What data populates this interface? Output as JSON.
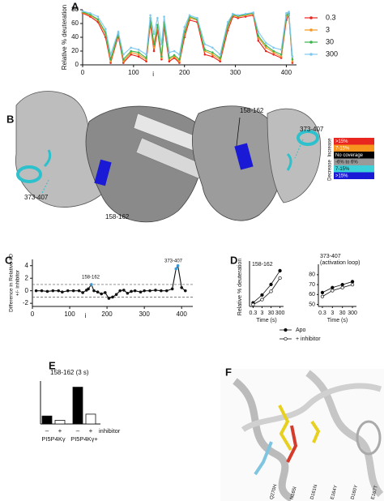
{
  "panel_labels": [
    "A",
    "B",
    "C",
    "D",
    "E",
    "F"
  ],
  "chart_data": [
    {
      "type": "line",
      "y_label": "Relative % deuteration",
      "x_label": "i",
      "x": [
        0,
        15,
        30,
        45,
        55,
        70,
        80,
        95,
        110,
        125,
        133,
        140,
        147,
        155,
        160,
        170,
        180,
        190,
        200,
        210,
        225,
        240,
        255,
        270,
        285,
        295,
        305,
        320,
        335,
        345,
        360,
        375,
        390,
        400,
        405,
        412
      ],
      "xlim": [
        0,
        420
      ],
      "xticks": [
        0,
        100,
        200,
        300,
        400
      ],
      "ylim": [
        0,
        80
      ],
      "yticks": [
        0,
        20,
        40,
        60,
        80
      ],
      "legend": "right",
      "series": [
        {
          "name": "0.3",
          "color": "#e8251f",
          "values": [
            75,
            70,
            62,
            40,
            3,
            42,
            3,
            15,
            12,
            5,
            60,
            20,
            50,
            8,
            55,
            5,
            10,
            3,
            40,
            65,
            62,
            15,
            12,
            5,
            50,
            70,
            68,
            70,
            72,
            35,
            20,
            15,
            10,
            65,
            72,
            3
          ]
        },
        {
          "name": "3",
          "color": "#f7941d",
          "values": [
            76,
            72,
            65,
            45,
            5,
            45,
            5,
            18,
            15,
            8,
            65,
            25,
            55,
            10,
            60,
            8,
            12,
            5,
            45,
            68,
            65,
            20,
            15,
            8,
            55,
            72,
            70,
            72,
            74,
            40,
            25,
            18,
            12,
            70,
            74,
            5
          ]
        },
        {
          "name": "30",
          "color": "#3cb44b",
          "values": [
            77,
            73,
            66,
            47,
            8,
            46,
            8,
            20,
            18,
            10,
            68,
            30,
            58,
            12,
            62,
            10,
            14,
            8,
            48,
            70,
            66,
            22,
            18,
            10,
            58,
            73,
            71,
            73,
            75,
            42,
            28,
            20,
            15,
            72,
            75,
            8
          ]
        },
        {
          "name": "300",
          "color": "#7ec8f0",
          "values": [
            78,
            75,
            70,
            52,
            15,
            48,
            15,
            25,
            22,
            15,
            72,
            45,
            68,
            30,
            70,
            18,
            20,
            15,
            55,
            72,
            68,
            30,
            25,
            15,
            62,
            74,
            72,
            74,
            76,
            48,
            32,
            25,
            22,
            75,
            77,
            12
          ]
        }
      ]
    },
    {
      "type": "line",
      "y_label": "Difference in Relative #D",
      "y_label_2": "+/- inhibitor",
      "x_label": "i",
      "annotations": [
        "158-162",
        "373-407"
      ],
      "x": [
        10,
        25,
        40,
        55,
        70,
        80,
        95,
        110,
        125,
        135,
        145,
        150,
        158,
        165,
        175,
        185,
        195,
        205,
        215,
        225,
        235,
        245,
        255,
        265,
        275,
        290,
        300,
        315,
        330,
        345,
        360,
        375,
        385,
        390,
        400,
        410
      ],
      "xlim": [
        0,
        430
      ],
      "xticks": [
        0,
        100,
        200,
        300,
        400
      ],
      "ylim": [
        -2.5,
        5
      ],
      "yticks": [
        -2,
        0,
        2,
        4
      ],
      "threshold_lines": [
        -1,
        1
      ],
      "series": [
        {
          "color": "#111111",
          "values": [
            0,
            0,
            -0.1,
            0,
            0,
            -0.2,
            0,
            0,
            0,
            -0.3,
            0.1,
            0.3,
            1,
            0,
            -0.2,
            -0.5,
            -0.3,
            -1.2,
            -1,
            -0.6,
            0,
            0.1,
            -0.4,
            -0.1,
            0,
            -0.2,
            0,
            0,
            0.1,
            0,
            0,
            0.3,
            3.5,
            4,
            0.5,
            0
          ],
          "point_colors": [
            "#111",
            "#111",
            "#111",
            "#111",
            "#111",
            "#111",
            "#111",
            "#111",
            "#111",
            "#111",
            "#111",
            "#111",
            "#3a9ad9",
            "#111",
            "#111",
            "#111",
            "#111",
            "#111",
            "#111",
            "#111",
            "#111",
            "#111",
            "#111",
            "#111",
            "#111",
            "#111",
            "#111",
            "#111",
            "#111",
            "#111",
            "#111",
            "#111",
            "#3a9ad9",
            "#3a9ad9",
            "#111",
            "#111"
          ]
        }
      ]
    },
    {
      "type": "errorline",
      "y_label": "Relative % deuteration",
      "x_label": "Time (s)",
      "categories": [
        "0.3",
        "3",
        "30",
        "300"
      ],
      "legend": [
        "Apo",
        "+ inhibitor"
      ],
      "marker_fill": [
        "#000000",
        "#ffffff"
      ],
      "plots": [
        {
          "title": "158-162",
          "ylim": [
            0,
            85
          ],
          "series": [
            {
              "values": [
                8,
                25,
                48,
                78
              ],
              "errors": [
                1,
                2,
                2,
                3
              ]
            },
            {
              "values": [
                4,
                15,
                33,
                62
              ],
              "errors": [
                1,
                1,
                2,
                3
              ]
            }
          ]
        },
        {
          "title": "373-407",
          "subtitle": "(activation loop)",
          "ylim": [
            48,
            84
          ],
          "yticks": [
            50,
            60,
            70,
            80
          ],
          "series": [
            {
              "values": [
                62,
                67,
                70,
                73
              ],
              "errors": [
                1,
                1,
                1,
                1
              ]
            },
            {
              "values": [
                58,
                64,
                67,
                70
              ],
              "errors": [
                1,
                1,
                1,
                1
              ]
            }
          ]
        }
      ]
    },
    {
      "type": "bar",
      "title": "158-162 (3 s)",
      "categories": [
        "–",
        "+",
        "–",
        "+"
      ],
      "groups": [
        "PI5P4Kγ",
        "PI5P4Kγ+"
      ],
      "group_note": "inhibitor",
      "values": [
        13,
        6,
        60,
        16
      ],
      "colors": [
        "#000000",
        "#ffffff",
        "#000000",
        "#ffffff"
      ],
      "ylim": [
        0,
        70
      ]
    }
  ],
  "structure_b": {
    "labels": [
      "158-162",
      "373-407",
      "373-407",
      "158-162"
    ],
    "scale": {
      "increase": "Increase",
      "decrease": "Decrease",
      "rows": [
        {
          "label": ">15%",
          "color": "#e8251f"
        },
        {
          "label": "7-15%",
          "color": "#f7941d"
        },
        {
          "label": "No coverage",
          "color": "#000000"
        },
        {
          "label": "-6% to 6%",
          "color": "#9a9a9a"
        },
        {
          "label": "7-15%",
          "color": "#3ed0d8"
        },
        {
          "label": ">15%",
          "color": "#1a1ad6"
        }
      ]
    }
  },
  "structure_f": {
    "residues": [
      "Q270H",
      "N165I",
      "D161N",
      "E164Y",
      "D160Y",
      "E167T"
    ]
  }
}
